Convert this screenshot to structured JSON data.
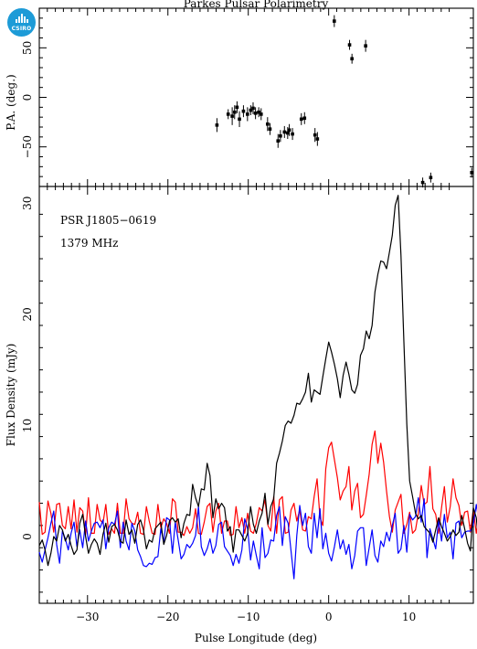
{
  "logo": {
    "text": "CSIRO"
  },
  "chart_data": [
    {
      "type": "scatter",
      "title": "Parkes Pulsar Polarimetry",
      "xlabel": "",
      "ylabel": "P.A. (deg.)",
      "xlim": [
        -36,
        18
      ],
      "ylim": [
        -90,
        90
      ],
      "yticks": [
        -50,
        0,
        50
      ],
      "series": [
        {
          "marker": "point-with-errorbar",
          "color": "#000000",
          "x": [
            -13.9,
            -12.5,
            -12.0,
            -11.7,
            -11.4,
            -11.1,
            -10.6,
            -10.1,
            -9.7,
            -9.4,
            -9.1,
            -8.7,
            -8.4,
            -7.6,
            -7.3,
            -6.3,
            -6.0,
            -5.5,
            -5.1,
            -4.9,
            -4.5,
            -3.4,
            -3.0,
            -1.7,
            -1.4,
            0.7,
            2.6,
            2.9,
            4.6,
            11.7,
            12.7,
            17.8
          ],
          "y": [
            -28,
            -17,
            -19,
            -15,
            -10,
            -22,
            -14,
            -17,
            -13,
            -11,
            -16,
            -15,
            -17,
            -27,
            -32,
            -44,
            -39,
            -35,
            -36,
            -33,
            -37,
            -22,
            -21,
            -38,
            -42,
            77,
            53,
            39,
            52,
            -86,
            -81,
            -76
          ],
          "err": [
            7,
            5,
            9,
            7,
            6,
            8,
            6,
            7,
            5,
            6,
            6,
            5,
            6,
            7,
            6,
            7,
            6,
            6,
            6,
            6,
            6,
            6,
            6,
            7,
            7,
            6,
            5,
            5,
            6,
            5,
            5,
            5
          ]
        }
      ]
    },
    {
      "type": "line",
      "title": "",
      "annotations": [
        "PSR J1805−0619",
        "1379 MHz"
      ],
      "xlabel": "Pulse Longitude (deg)",
      "ylabel": "Flux Density (mJy)",
      "xlim": [
        -36,
        18
      ],
      "ylim": [
        -6,
        31.5
      ],
      "xticks": [
        -30,
        -20,
        -10,
        0,
        10
      ],
      "yticks": [
        0,
        10,
        20,
        30
      ],
      "x_start": -36,
      "x_step": 0.36,
      "series": [
        {
          "color": "#000000",
          "values": [
            -0.8,
            -0.3,
            -1.2,
            -2.6,
            -1.5,
            0.0,
            -0.4,
            1.0,
            0.6,
            -0.4,
            0.2,
            -0.8,
            -1.6,
            -1.2,
            1.2,
            2.0,
            0.0,
            -1.5,
            -0.7,
            -0.2,
            -0.6,
            -1.6,
            0.2,
            1.2,
            -0.5,
            0.9,
            1.1,
            0.6,
            -0.4,
            -0.6,
            1.5,
            0.2,
            0.6,
            -0.6,
            1.1,
            1.5,
            0.6,
            -1.1,
            -0.3,
            -0.5,
            0.7,
            1.0,
            1.3,
            -0.7,
            0.1,
            1.4,
            1.7,
            1.3,
            1.6,
            -0.1,
            1.2,
            2.0,
            1.9,
            4.7,
            3.5,
            2.7,
            4.3,
            4.2,
            6.6,
            5.5,
            1.7,
            3.4,
            2.5,
            3.0,
            2.6,
            0.5,
            0.9,
            -1.4,
            0.6,
            0.6,
            0.1,
            -0.4,
            0.3,
            2.7,
            1.1,
            0.3,
            1.4,
            2.1,
            3.9,
            1.1,
            2.7,
            3.4,
            6.6,
            7.5,
            8.6,
            10.0,
            10.4,
            10.2,
            10.9,
            12.0,
            11.9,
            12.4,
            13.0,
            14.7,
            12.1,
            13.2,
            13.0,
            12.8,
            14.4,
            16.0,
            17.5,
            16.6,
            15.5,
            14.2,
            12.5,
            14.5,
            15.7,
            14.6,
            13.2,
            12.9,
            13.7,
            16.3,
            16.9,
            18.5,
            17.8,
            19.0,
            22.0,
            23.6,
            24.8,
            24.7,
            24.1,
            25.6,
            27.1,
            29.8,
            30.7,
            25.3,
            17.5,
            10.1,
            5.0,
            3.6,
            2.1,
            1.6,
            1.9,
            0.9,
            0.6,
            0.3,
            -0.5,
            0.6,
            1.7,
            0.9,
            0.3,
            -0.4,
            0.0,
            0.6,
            0.1,
            0.4,
            1.9,
            0.7,
            -0.6,
            -1.3,
            2.6,
            1.7,
            -0.9,
            0.5,
            -0.6,
            0.0,
            -2.3,
            -0.6,
            1.1,
            0.8,
            -0.6,
            -0.8,
            -1.4,
            -5.5,
            -5.5,
            -0.3,
            0.3,
            -1.4,
            0.1,
            1.9,
            0.3,
            -0.2,
            0.7,
            0.6,
            -0.7,
            -0.3,
            1.4,
            0.6,
            -0.5,
            1.0
          ]
        },
        {
          "color": "#ff0000",
          "values": [
            3.1,
            0.2,
            0.4,
            3.2,
            2.1,
            0.4,
            2.9,
            3.0,
            1.0,
            0.7,
            2.7,
            0.7,
            3.3,
            0.4,
            2.6,
            2.3,
            0.2,
            3.5,
            0.3,
            0.3,
            2.9,
            1.5,
            1.2,
            2.9,
            0.2,
            0.7,
            0.3,
            3.0,
            0.3,
            0.3,
            3.4,
            1.6,
            1.2,
            1.1,
            2.2,
            0.3,
            0.2,
            2.7,
            1.4,
            0.3,
            0.2,
            2.9,
            0.8,
            1.6,
            1.2,
            0.3,
            3.4,
            3.1,
            0.4,
            0.4,
            0.1,
            0.9,
            0.3,
            0.8,
            2.5,
            0.3,
            0.2,
            1.3,
            2.7,
            3.0,
            0.4,
            2.3,
            3.0,
            0.3,
            1.4,
            1.4,
            0.1,
            0.2,
            2.7,
            0.8,
            1.7,
            0.3,
            2.1,
            0.5,
            0.3,
            1.2,
            2.6,
            2.3,
            3.3,
            1.0,
            0.5,
            3.6,
            0.3,
            3.3,
            3.6,
            0.3,
            0.4,
            2.4,
            3.0,
            1.4,
            2.4,
            0.6,
            0.5,
            1.8,
            1.6,
            3.6,
            5.2,
            1.7,
            1.0,
            6.1,
            8.0,
            8.5,
            6.9,
            5.3,
            3.3,
            4.1,
            4.5,
            6.3,
            2.4,
            4.1,
            4.8,
            1.7,
            2.0,
            3.7,
            5.6,
            8.3,
            9.5,
            6.6,
            8.4,
            6.7,
            4.1,
            1.8,
            0.4,
            2.4,
            3.1,
            3.8,
            0.3,
            1.1,
            2.2,
            0.3,
            0.6,
            2.1,
            4.6,
            2.9,
            3.1,
            6.3,
            2.5,
            2.0,
            0.3,
            2.6,
            4.5,
            1.3,
            2.7,
            5.2,
            3.5,
            2.8,
            1.0,
            2.2,
            2.3,
            0.4,
            2.5,
            0.3,
            1.9,
            1.9,
            0.4,
            1.1,
            0.4,
            1.4,
            0.4,
            0.2,
            0.4,
            0.5,
            0.3,
            0.2,
            0.5,
            0.2,
            0.3,
            0.2,
            3.6,
            0.3,
            3.1,
            0.2,
            2.0,
            2.5,
            0.3,
            1.4,
            1.4,
            2.8,
            2.2,
            1.4,
            4.1,
            0.7,
            2.0,
            1.6,
            6.4,
            1.6
          ]
        },
        {
          "color": "#0000ff",
          "values": [
            -1.4,
            -2.3,
            -1.2,
            -0.1,
            1.2,
            2.3,
            -0.7,
            -2.4,
            0.5,
            -0.2,
            -1.2,
            0.3,
            1.3,
            -0.9,
            0.6,
            -1.0,
            1.4,
            -0.4,
            0.5,
            1.2,
            1.3,
            0.8,
            1.5,
            -1.1,
            0.8,
            1.3,
            1.1,
            2.3,
            -1.0,
            1.3,
            -0.4,
            -1.2,
            1.2,
            0.5,
            -1.2,
            -1.8,
            -2.6,
            -2.7,
            -2.4,
            -2.5,
            -1.9,
            -1.8,
            0.7,
            -0.5,
            1.7,
            1.5,
            -1.5,
            1.3,
            -0.3,
            -2.0,
            -1.6,
            -0.7,
            -1.0,
            -0.6,
            0.1,
            2.7,
            -0.9,
            -1.7,
            -1.1,
            -0.2,
            -1.5,
            -0.8,
            1.1,
            1.3,
            -0.9,
            -1.3,
            -1.7,
            -2.6,
            -1.6,
            -2.4,
            -1.2,
            1.6,
            0.7,
            -2.1,
            -0.4,
            -1.7,
            -2.9,
            0.8,
            -1.9,
            -1.5,
            -0.3,
            -0.4,
            1.9,
            2.7,
            -0.8,
            1.8,
            1.2,
            -1.3,
            -3.8,
            0.1,
            2.8,
            1.0,
            2.1,
            -0.9,
            -1.5,
            2.1,
            -0.1,
            2.5,
            -1.1,
            0.3,
            -1.5,
            -2.2,
            -0.9,
            0.6,
            -1.1,
            -0.3,
            -1.6,
            -0.7,
            -2.9,
            -1.7,
            0.5,
            0.8,
            0.8,
            -2.6,
            -1.0,
            0.6,
            -1.7,
            -2.3,
            -0.4,
            -0.9,
            0.4,
            -0.4,
            1.0,
            2.1,
            -1.5,
            -1.1,
            1.0,
            -1.4,
            2.0,
            1.5,
            1.8,
            3.5,
            1.3,
            3.4,
            -1.9,
            0.7,
            -0.2,
            -1.1,
            1.5,
            -0.4,
            2.0,
            -0.1,
            0.4,
            -2.0,
            1.2,
            1.4,
            -0.1,
            0.4,
            0.5,
            0.5,
            1.1,
            2.9,
            1.2,
            2.0,
            2.0,
            1.2,
            -1.2,
            0.7,
            -0.9,
            -0.6,
            1.5,
            0.2,
            -0.7,
            1.7,
            -0.6,
            3.5,
            -1.5,
            1.9,
            0.1,
            -1.2,
            -0.2,
            0.9,
            -1.8,
            0.6,
            1.3,
            -1.5,
            2.0,
            0.3,
            4.6,
            1.6,
            0.8,
            2.5,
            1.2,
            -0.8,
            0.1,
            1.5,
            2.8,
            -0.6,
            -1.1,
            0.8,
            -0.6
          ]
        }
      ]
    }
  ]
}
